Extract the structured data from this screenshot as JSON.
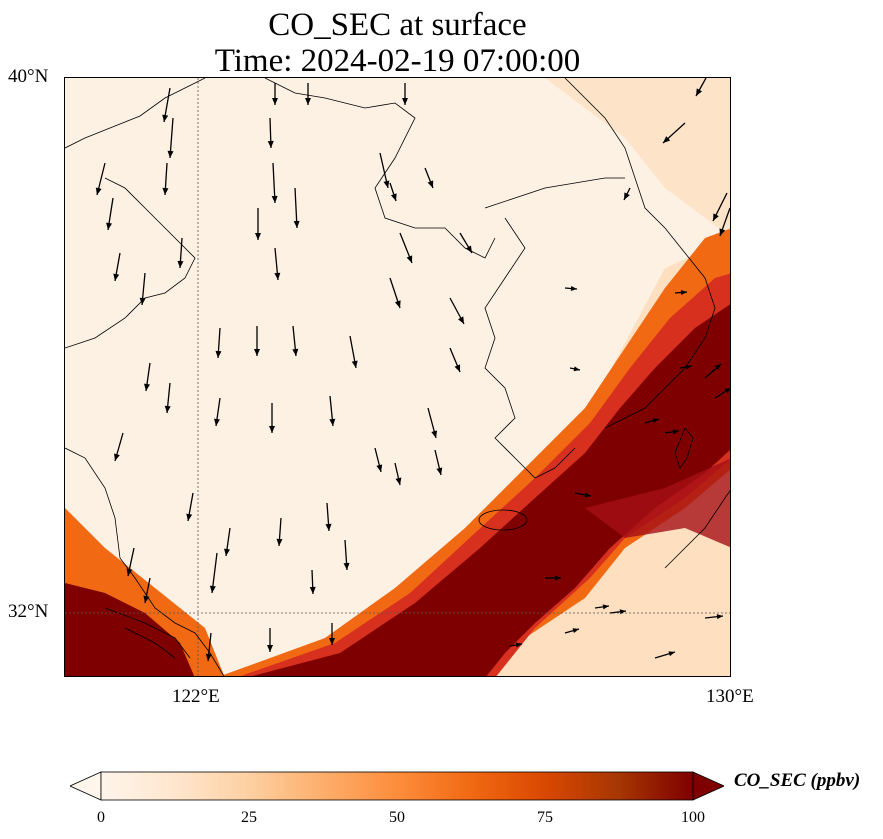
{
  "title": {
    "line1": "CO_SEC at surface",
    "line2": "Time: 2024-02-19 07:00:00"
  },
  "axes": {
    "lat_labels": [
      "40°N",
      "32°N"
    ],
    "lon_labels": [
      "122°E",
      "130°E"
    ],
    "lon_range": [
      120.0,
      130.0
    ],
    "lat_range": [
      31.0,
      40.0
    ],
    "gridlines": {
      "lon": 122,
      "lat": 32,
      "style": "dotted"
    }
  },
  "colorbar": {
    "label": "CO_SEC (ppbv)",
    "ticks": [
      "0",
      "25",
      "50",
      "75",
      "100"
    ],
    "range": [
      0,
      100
    ],
    "extend": "both",
    "colormap": [
      "#fff5eb",
      "#fee6ce",
      "#fdd0a2",
      "#fdae6b",
      "#fd8d3c",
      "#f16913",
      "#d94801",
      "#a63603",
      "#7f0000"
    ]
  },
  "colors": {
    "background": "#fdf1e4",
    "plume_core": "#7f0000",
    "plume_edge": "#e34a33",
    "coastline": "#000000",
    "arrows": "#000000"
  },
  "chart_data": {
    "type": "heatmap",
    "title": "CO_SEC at surface\nTime: 2024-02-19 07:00:00",
    "variable": "CO_SEC",
    "units": "ppbv",
    "time": "2024-02-19 07:00:00",
    "lon_range": [
      120.0,
      130.0
    ],
    "lat_range": [
      31.0,
      40.0
    ],
    "value_range": [
      0,
      100
    ],
    "features": [
      "Background concentration ~5-15 ppbv over Bohai / Yellow Sea",
      "High-concentration band (>100 ppbv) along a SW-NE axis from ~124E,31N to ~130E,36.5N",
      "Elevated values (>100 ppbv) near 120-121E, 31-32N (Yangtze delta)"
    ],
    "wind_field": "Northerly winds over Yellow Sea, turning westerly/south-westerly over the SE part of the domain"
  }
}
